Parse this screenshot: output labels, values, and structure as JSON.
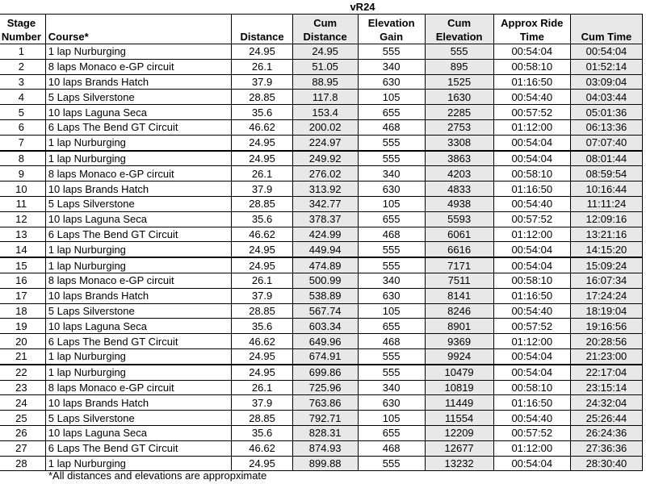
{
  "title": "vR24",
  "headers": {
    "stage": [
      "Stage",
      "Number"
    ],
    "course": "Course*",
    "distance": "Distance",
    "cum_distance": [
      "Cum",
      "Distance"
    ],
    "elevation_gain": [
      "Elevation",
      "Gain"
    ],
    "cum_elevation": [
      "Cum",
      "Elevation"
    ],
    "ride_time": [
      "Approx Ride",
      "Time"
    ],
    "cum_time": "Cum Time"
  },
  "rows": [
    [
      "1",
      "1 lap Nurburging",
      "24.95",
      "24.95",
      "555",
      "555",
      "00:54:04",
      "00:54:04"
    ],
    [
      "2",
      "8 laps Monaco e-GP circuit",
      "26.1",
      "51.05",
      "340",
      "895",
      "00:58:10",
      "01:52:14"
    ],
    [
      "3",
      "10 laps Brands Hatch",
      "37.9",
      "88.95",
      "630",
      "1525",
      "01:16:50",
      "03:09:04"
    ],
    [
      "4",
      "5 Laps Silverstone",
      "28.85",
      "117.8",
      "105",
      "1630",
      "00:54:40",
      "04:03:44"
    ],
    [
      "5",
      "10 laps Laguna Seca",
      "35.6",
      "153.4",
      "655",
      "2285",
      "00:57:52",
      "05:01:36"
    ],
    [
      "6",
      "6 Laps The Bend GT Circuit",
      "46.62",
      "200.02",
      "468",
      "2753",
      "01:12:00",
      "06:13:36"
    ],
    [
      "7",
      "1 lap Nurburging",
      "24.95",
      "224.97",
      "555",
      "3308",
      "00:54:04",
      "07:07:40"
    ],
    [
      "8",
      "1 lap Nurburging",
      "24.95",
      "249.92",
      "555",
      "3863",
      "00:54:04",
      "08:01:44"
    ],
    [
      "9",
      "8 laps Monaco e-GP circuit",
      "26.1",
      "276.02",
      "340",
      "4203",
      "00:58:10",
      "08:59:54"
    ],
    [
      "10",
      "10 laps Brands Hatch",
      "37.9",
      "313.92",
      "630",
      "4833",
      "01:16:50",
      "10:16:44"
    ],
    [
      "11",
      "5 Laps Silverstone",
      "28.85",
      "342.77",
      "105",
      "4938",
      "00:54:40",
      "11:11:24"
    ],
    [
      "12",
      "10 laps Laguna Seca",
      "35.6",
      "378.37",
      "655",
      "5593",
      "00:57:52",
      "12:09:16"
    ],
    [
      "13",
      "6 Laps The Bend GT Circuit",
      "46.62",
      "424.99",
      "468",
      "6061",
      "01:12:00",
      "13:21:16"
    ],
    [
      "14",
      "1 lap Nurburging",
      "24.95",
      "449.94",
      "555",
      "6616",
      "00:54:04",
      "14:15:20"
    ],
    [
      "15",
      "1 lap Nurburging",
      "24.95",
      "474.89",
      "555",
      "7171",
      "00:54:04",
      "15:09:24"
    ],
    [
      "16",
      "8 laps Monaco e-GP circuit",
      "26.1",
      "500.99",
      "340",
      "7511",
      "00:58:10",
      "16:07:34"
    ],
    [
      "17",
      "10 laps Brands Hatch",
      "37.9",
      "538.89",
      "630",
      "8141",
      "01:16:50",
      "17:24:24"
    ],
    [
      "18",
      "5 Laps Silverstone",
      "28.85",
      "567.74",
      "105",
      "8246",
      "00:54:40",
      "18:19:04"
    ],
    [
      "19",
      "10 laps Laguna Seca",
      "35.6",
      "603.34",
      "655",
      "8901",
      "00:57:52",
      "19:16:56"
    ],
    [
      "20",
      "6 Laps The Bend GT Circuit",
      "46.62",
      "649.96",
      "468",
      "9369",
      "01:12:00",
      "20:28:56"
    ],
    [
      "21",
      "1 lap Nurburging",
      "24.95",
      "674.91",
      "555",
      "9924",
      "00:54:04",
      "21:23:00"
    ],
    [
      "22",
      "1 lap Nurburging",
      "24.95",
      "699.86",
      "555",
      "10479",
      "00:54:04",
      "22:17:04"
    ],
    [
      "23",
      "8 laps Monaco e-GP circuit",
      "26.1",
      "725.96",
      "340",
      "10819",
      "00:58:10",
      "23:15:14"
    ],
    [
      "24",
      "10 laps Brands Hatch",
      "37.9",
      "763.86",
      "630",
      "11449",
      "01:16:50",
      "24:32:04"
    ],
    [
      "25",
      "5 Laps Silverstone",
      "28.85",
      "792.71",
      "105",
      "11554",
      "00:54:40",
      "25:26:44"
    ],
    [
      "26",
      "10 laps Laguna Seca",
      "35.6",
      "828.31",
      "655",
      "12209",
      "00:57:52",
      "26:24:36"
    ],
    [
      "27",
      "6 Laps The Bend GT Circuit",
      "46.62",
      "874.93",
      "468",
      "12677",
      "01:12:00",
      "27:36:36"
    ],
    [
      "28",
      "1 lap Nurburging",
      "24.95",
      "899.88",
      "555",
      "13232",
      "00:54:04",
      "28:30:40"
    ]
  ],
  "footnote": "*All distances and elevations are appropximate",
  "colors": {
    "cumulative_column_bg": "#e8e8e8",
    "border": "#000000"
  }
}
